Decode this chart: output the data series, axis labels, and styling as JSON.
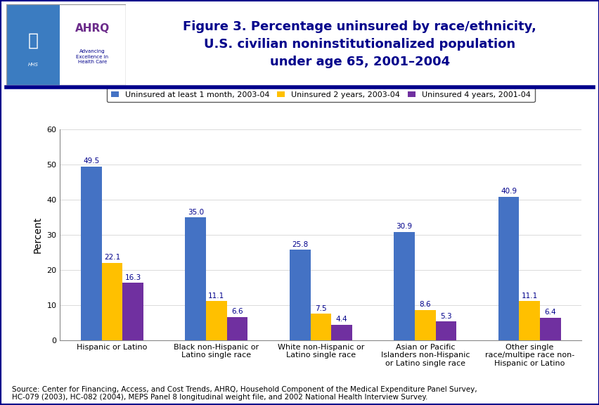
{
  "title_line1": "Figure 3. Percentage uninsured by race/ethnicity,",
  "title_line2": "U.S. civilian noninstitutionalized population",
  "title_line3": "under age 65, 2001–2004",
  "ylabel": "Percent",
  "categories": [
    "Hispanic or Latino",
    "Black non-Hispanic or\nLatino single race",
    "White non-Hispanic or\nLatino single race",
    "Asian or Pacific\nIslanders non-Hispanic\nor Latino single race",
    "Other single\nrace/multipe race non-\nHispanic or Latino"
  ],
  "series": [
    {
      "label": "Uninsured at least 1 month, 2003-04",
      "color": "#4472C4",
      "values": [
        49.5,
        35.0,
        25.8,
        30.9,
        40.9
      ]
    },
    {
      "label": "Uninsured 2 years, 2003-04",
      "color": "#FFC000",
      "values": [
        22.1,
        11.1,
        7.5,
        8.6,
        11.1
      ]
    },
    {
      "label": "Uninsured 4 years, 2001-04",
      "color": "#7030A0",
      "values": [
        16.3,
        6.6,
        4.4,
        5.3,
        6.4
      ]
    }
  ],
  "ylim": [
    0,
    60
  ],
  "yticks": [
    0,
    10,
    20,
    30,
    40,
    50,
    60
  ],
  "source_text": "Source: Center for Financing, Access, and Cost Trends, AHRQ, Household Component of the Medical Expenditure Panel Survey,\nHC-079 (2003), HC-082 (2004), MEPS Panel 8 longitudinal weight file, and 2002 National Health Interview Survey.",
  "bg_color": "#FFFFFF",
  "border_color": "#00008B",
  "title_color": "#00008B",
  "bar_width": 0.2,
  "value_label_fontsize": 7.5,
  "axis_label_fontsize": 10,
  "tick_label_fontsize": 8,
  "legend_fontsize": 8,
  "source_fontsize": 7.5,
  "title_fontsize": 13
}
